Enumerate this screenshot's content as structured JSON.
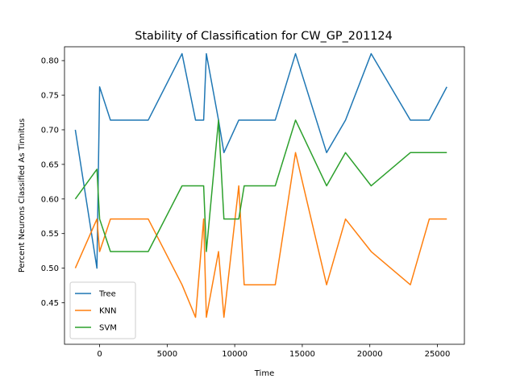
{
  "chart_data": {
    "type": "line",
    "title": "Stability of Classification for CW_GP_201124",
    "xlabel": "Time",
    "ylabel": "Percent Neurons Classified As Tinnitus",
    "xlim": [
      -2600,
      27000
    ],
    "ylim": [
      0.39,
      0.82
    ],
    "xticks": [
      0,
      5000,
      10000,
      15000,
      20000,
      25000
    ],
    "xtick_labels": [
      "0",
      "5000",
      "10000",
      "15000",
      "20000",
      "25000"
    ],
    "yticks": [
      0.45,
      0.5,
      0.55,
      0.6,
      0.65,
      0.7,
      0.75,
      0.8
    ],
    "ytick_labels": [
      "0.45",
      "0.50",
      "0.55",
      "0.60",
      "0.65",
      "0.70",
      "0.75",
      "0.80"
    ],
    "grid": false,
    "legend": "lower-left",
    "series": [
      {
        "name": "Tree",
        "color": "#1f77b4",
        "x": [
          -1800,
          -200,
          0,
          800,
          3600,
          6100,
          7100,
          7700,
          7900,
          8800,
          9200,
          10300,
          13000,
          14500,
          16800,
          18200,
          20100,
          23000,
          24400,
          25700
        ],
        "y": [
          0.7,
          0.5,
          0.762,
          0.714,
          0.714,
          0.81,
          0.714,
          0.714,
          0.81,
          0.714,
          0.667,
          0.714,
          0.714,
          0.81,
          0.667,
          0.714,
          0.81,
          0.714,
          0.714,
          0.762
        ]
      },
      {
        "name": "KNN",
        "color": "#ff7f0e",
        "x": [
          -1800,
          -200,
          0,
          800,
          3600,
          6100,
          7100,
          7700,
          7900,
          8800,
          9200,
          10300,
          10700,
          13000,
          14500,
          16800,
          18200,
          20100,
          23000,
          24400,
          25700
        ],
        "y": [
          0.5,
          0.571,
          0.524,
          0.571,
          0.571,
          0.476,
          0.429,
          0.571,
          0.429,
          0.524,
          0.429,
          0.619,
          0.476,
          0.476,
          0.667,
          0.476,
          0.571,
          0.524,
          0.476,
          0.571,
          0.571
        ]
      },
      {
        "name": "SVM",
        "color": "#2ca02c",
        "x": [
          -1800,
          -200,
          0,
          800,
          3600,
          6100,
          7100,
          7700,
          7900,
          8800,
          9200,
          10300,
          10700,
          13000,
          14500,
          16800,
          18200,
          20100,
          23000,
          24400,
          25700
        ],
        "y": [
          0.6,
          0.643,
          0.571,
          0.524,
          0.524,
          0.619,
          0.619,
          0.619,
          0.524,
          0.714,
          0.571,
          0.571,
          0.619,
          0.619,
          0.714,
          0.619,
          0.667,
          0.619,
          0.667,
          0.667,
          0.667
        ]
      }
    ]
  }
}
